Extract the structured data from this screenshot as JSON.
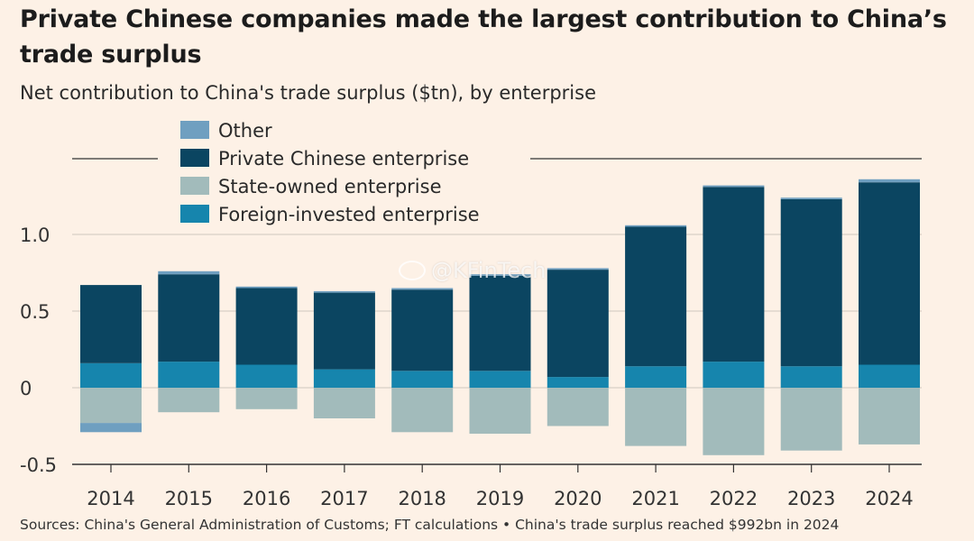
{
  "header": {
    "title": "Private Chinese companies made the largest contribution to China’s trade surplus",
    "subtitle": "Net contribution to China's trade surplus ($tn), by enterprise"
  },
  "footer": {
    "source": "Sources: China's General Administration of Customs; FT calculations • China's trade surplus reached $992bn in 2024"
  },
  "watermark": {
    "text": "@KFinTech"
  },
  "chart_data": {
    "type": "bar",
    "stacked": true,
    "title": "Private Chinese companies made the largest contribution to China’s trade surplus",
    "subtitle": "Net contribution to China's trade surplus ($tn), by enterprise",
    "xlabel": "",
    "ylabel": "",
    "ylim": [
      -0.5,
      1.38
    ],
    "yticks": [
      {
        "value": -0.5,
        "label": "-0.5"
      },
      {
        "value": 0,
        "label": "0"
      },
      {
        "value": 0.5,
        "label": "0.5"
      },
      {
        "value": 1.0,
        "label": "1.0"
      }
    ],
    "grid": true,
    "legend": "top-left",
    "categories": [
      "2014",
      "2015",
      "2016",
      "2017",
      "2018",
      "2019",
      "2020",
      "2021",
      "2022",
      "2023",
      "2024"
    ],
    "series": [
      {
        "name": "Other",
        "color": "#6f9fc0",
        "values": [
          0.0,
          0.02,
          0.01,
          0.01,
          0.01,
          0.01,
          0.01,
          0.01,
          0.01,
          0.01,
          0.02
        ]
      },
      {
        "name": "Private Chinese enterprise",
        "color": "#0b4561",
        "values": [
          0.51,
          0.57,
          0.5,
          0.5,
          0.53,
          0.62,
          0.7,
          0.91,
          1.14,
          1.09,
          1.19
        ]
      },
      {
        "name": "State-owned enterprise",
        "color": "#a2bbbb",
        "values": [
          -0.23,
          -0.16,
          -0.14,
          -0.2,
          -0.29,
          -0.3,
          -0.25,
          -0.38,
          -0.44,
          -0.41,
          -0.37
        ]
      },
      {
        "name": "Foreign-invested enterprise",
        "color": "#1685ad",
        "values": [
          0.16,
          0.17,
          0.15,
          0.12,
          0.11,
          0.11,
          0.07,
          0.14,
          0.17,
          0.14,
          0.15
        ]
      }
    ],
    "negative_other": [
      -0.06,
      0,
      0,
      0,
      0,
      0,
      0,
      0,
      0,
      0,
      0
    ]
  }
}
